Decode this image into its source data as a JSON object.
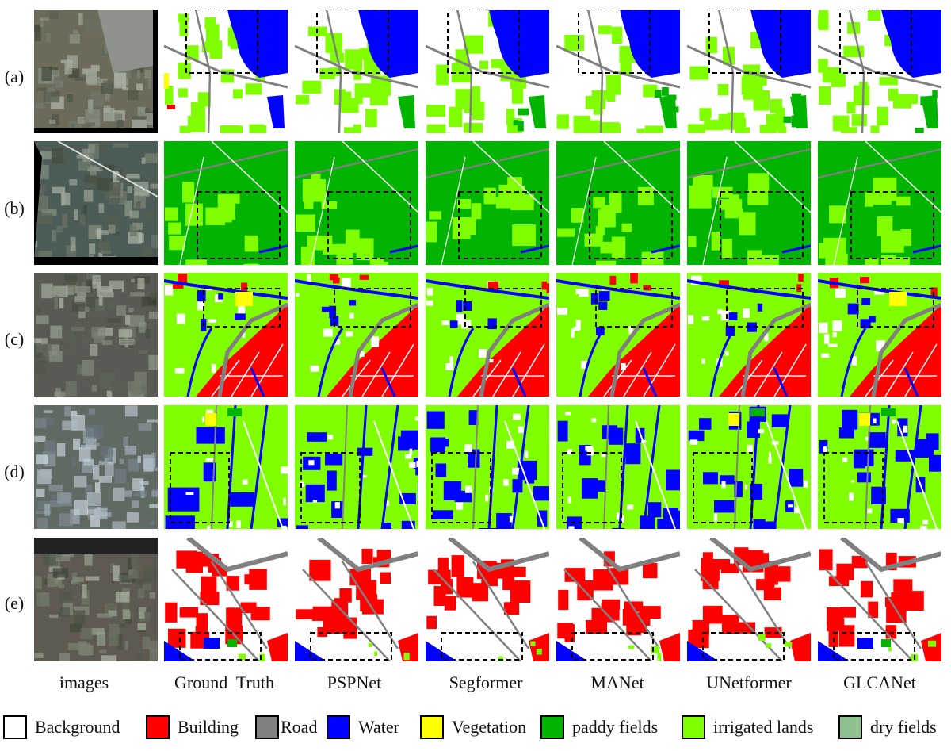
{
  "rows": [
    {
      "label": "(a)"
    },
    {
      "label": "(b)"
    },
    {
      "label": "(c)"
    },
    {
      "label": "(d)"
    },
    {
      "label": "(e)"
    }
  ],
  "columns": [
    {
      "label": "images"
    },
    {
      "label": "Ground  Truth"
    },
    {
      "label": "PSPNet"
    },
    {
      "label": "Segformer"
    },
    {
      "label": "MANet"
    },
    {
      "label": "UNetformer"
    },
    {
      "label": "GLCANet"
    }
  ],
  "legend": [
    {
      "label": "Background",
      "color": "#ffffff"
    },
    {
      "label": "Building",
      "color": "#ff0000"
    },
    {
      "label": "Road",
      "color": "#808080"
    },
    {
      "label": "Water",
      "color": "#0000ff"
    },
    {
      "label": "Vegetation",
      "color": "#ffff00"
    },
    {
      "label": "paddy fields",
      "color": "#00b400"
    },
    {
      "label": "irrigated lands",
      "color": "#80ff00"
    },
    {
      "label": "dry fields",
      "color": "#8fc08f"
    }
  ]
}
